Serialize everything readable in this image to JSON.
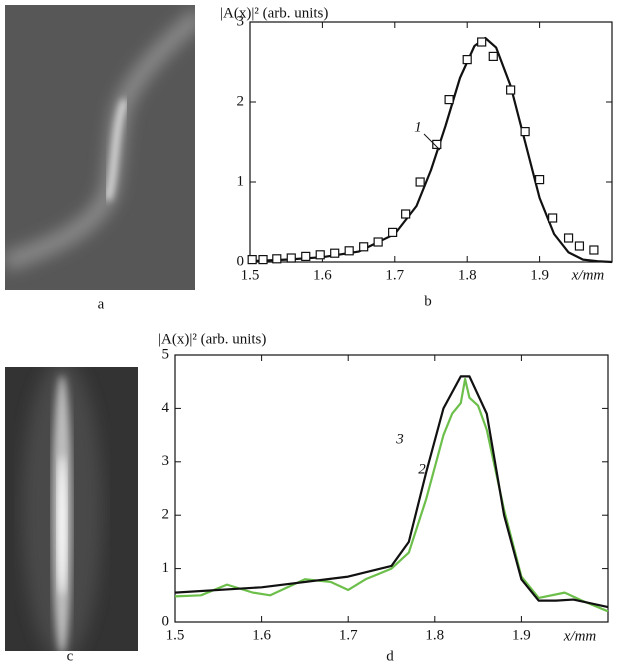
{
  "images": [
    {
      "label": "a"
    },
    {
      "label": "c"
    }
  ],
  "chart_data": [
    {
      "type": "line",
      "panel_label": "b",
      "ylabel": "|A(x)|² (arb. units)",
      "xlabel": "x/mm",
      "xlim": [
        1.5,
        2.0
      ],
      "ylim": [
        0,
        3
      ],
      "xticks": [
        1.5,
        1.6,
        1.7,
        1.8,
        1.9
      ],
      "yticks": [
        0,
        1,
        2,
        3
      ],
      "annotations": [
        "1"
      ],
      "series": [
        {
          "name": "1",
          "color": "#111111",
          "marker": "none",
          "x": [
            1.5,
            1.55,
            1.6,
            1.65,
            1.7,
            1.73,
            1.75,
            1.77,
            1.79,
            1.81,
            1.825,
            1.84,
            1.86,
            1.88,
            1.9,
            1.92,
            1.94,
            1.96,
            1.98,
            2.0
          ],
          "values": [
            0.01,
            0.03,
            0.06,
            0.13,
            0.35,
            0.7,
            1.15,
            1.7,
            2.3,
            2.7,
            2.8,
            2.68,
            2.2,
            1.5,
            0.8,
            0.35,
            0.12,
            0.03,
            0.01,
            0
          ]
        },
        {
          "color": "#111111",
          "marker": "square",
          "x": [
            1.503,
            1.518,
            1.537,
            1.557,
            1.577,
            1.597,
            1.617,
            1.637,
            1.657,
            1.677,
            1.697,
            1.715,
            1.735,
            1.758,
            1.775,
            1.8,
            1.82,
            1.836,
            1.86,
            1.88,
            1.9,
            1.918,
            1.94,
            1.955,
            1.975
          ],
          "values": [
            0.03,
            0.03,
            0.04,
            0.05,
            0.07,
            0.09,
            0.11,
            0.14,
            0.19,
            0.25,
            0.37,
            0.6,
            1.0,
            1.47,
            2.03,
            2.53,
            2.75,
            2.57,
            2.15,
            1.63,
            1.03,
            0.55,
            0.3,
            0.2,
            0.15
          ]
        }
      ]
    },
    {
      "type": "line",
      "panel_label": "d",
      "ylabel": "|A(x)|² (arb. units)",
      "xlabel": "x/mm",
      "xlim": [
        1.5,
        2.0
      ],
      "ylim": [
        0,
        5
      ],
      "xticks": [
        1.5,
        1.6,
        1.7,
        1.8,
        1.9
      ],
      "yticks": [
        0,
        1,
        2,
        3,
        4,
        5
      ],
      "annotations": [
        "3",
        "2"
      ],
      "series": [
        {
          "name": "2",
          "color": "#6cbf4a",
          "marker": "none",
          "x": [
            1.5,
            1.53,
            1.56,
            1.59,
            1.61,
            1.65,
            1.68,
            1.7,
            1.72,
            1.75,
            1.77,
            1.79,
            1.81,
            1.82,
            1.83,
            1.835,
            1.84,
            1.85,
            1.86,
            1.88,
            1.9,
            1.92,
            1.95,
            1.97,
            2.0
          ],
          "values": [
            0.48,
            0.5,
            0.7,
            0.55,
            0.5,
            0.8,
            0.75,
            0.6,
            0.8,
            1.0,
            1.3,
            2.3,
            3.5,
            3.9,
            4.1,
            4.55,
            4.2,
            4.05,
            3.6,
            2.1,
            0.85,
            0.45,
            0.55,
            0.4,
            0.2
          ]
        },
        {
          "name": "3",
          "color": "#111111",
          "marker": "none",
          "x": [
            1.5,
            1.6,
            1.7,
            1.75,
            1.77,
            1.79,
            1.81,
            1.83,
            1.84,
            1.86,
            1.88,
            1.9,
            1.92,
            1.94,
            1.96,
            1.98,
            2.0
          ],
          "values": [
            0.55,
            0.65,
            0.85,
            1.05,
            1.5,
            2.8,
            4.0,
            4.6,
            4.6,
            3.9,
            2.0,
            0.8,
            0.4,
            0.4,
            0.42,
            0.35,
            0.28
          ]
        }
      ]
    }
  ]
}
